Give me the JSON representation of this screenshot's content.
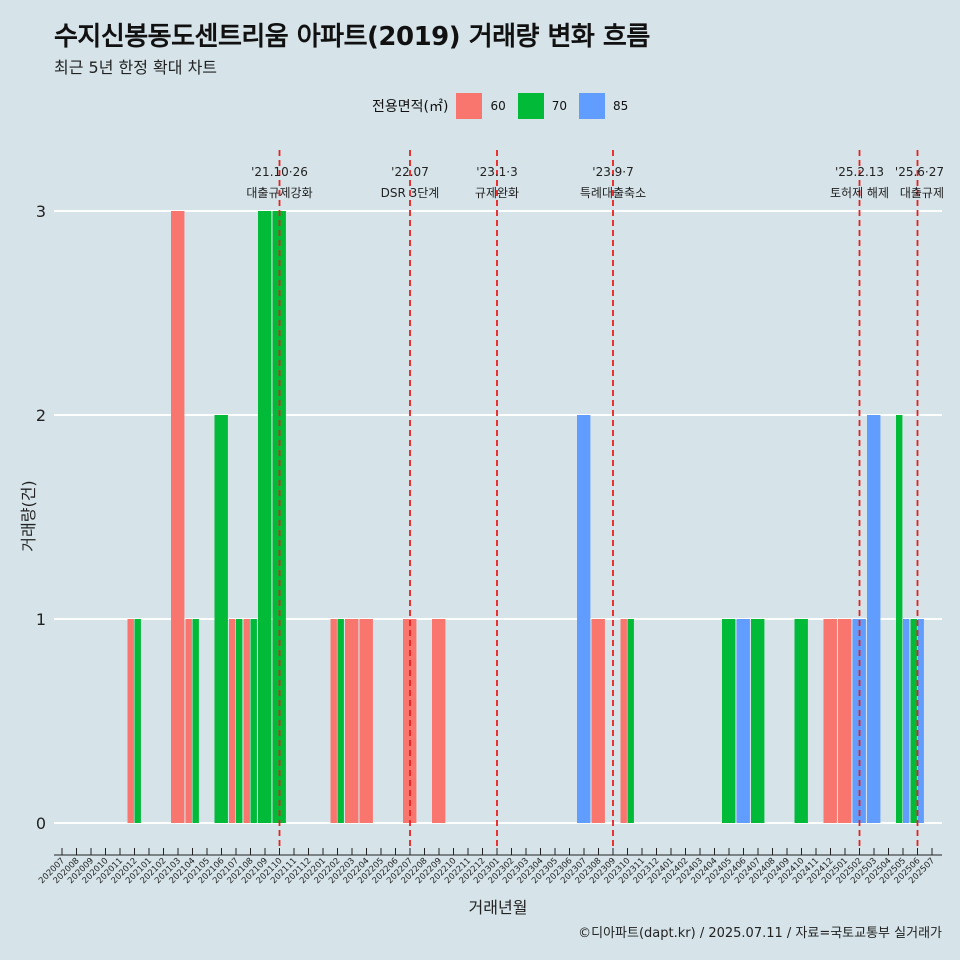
{
  "title": "수지신봉동도센트리움 아파트(2019) 거래량 변화 흐름",
  "subtitle": "최근 5년 한정 확대 차트",
  "caption": "©디아파트(dapt.kr) / 2025.07.11 / 자료=국토교통부 실거래가",
  "legend": {
    "title": "전용면적(㎡)",
    "items": [
      {
        "label": "60",
        "color": "#f8766d"
      },
      {
        "label": "70",
        "color": "#00ba38"
      },
      {
        "label": "85",
        "color": "#619cff"
      }
    ]
  },
  "chart_data": {
    "type": "bar",
    "xlabel": "거래년월",
    "ylabel": "거래량(건)",
    "ylim": [
      0,
      3
    ],
    "yticks": [
      0,
      1,
      2,
      3
    ],
    "grid": true,
    "categories": [
      "202007",
      "202008",
      "202009",
      "202010",
      "202011",
      "202012",
      "202101",
      "202102",
      "202103",
      "202104",
      "202105",
      "202106",
      "202107",
      "202108",
      "202109",
      "202110",
      "202111",
      "202112",
      "202201",
      "202202",
      "202203",
      "202204",
      "202205",
      "202206",
      "202207",
      "202208",
      "202209",
      "202210",
      "202211",
      "202212",
      "202301",
      "202302",
      "202303",
      "202304",
      "202305",
      "202306",
      "202307",
      "202308",
      "202309",
      "202310",
      "202311",
      "202312",
      "202401",
      "202402",
      "202403",
      "202404",
      "202405",
      "202406",
      "202407",
      "202408",
      "202409",
      "202410",
      "202411",
      "202412",
      "202501",
      "202502",
      "202503",
      "202504",
      "202505",
      "202506",
      "202507"
    ],
    "series": [
      {
        "name": "60",
        "color": "#f8766d",
        "values": [
          0,
          0,
          0,
          0,
          0,
          1,
          0,
          0,
          3,
          1,
          0,
          0,
          1,
          1,
          0,
          0,
          0,
          0,
          0,
          1,
          1,
          1,
          0,
          0,
          1,
          0,
          1,
          0,
          0,
          0,
          0,
          0,
          0,
          0,
          0,
          0,
          0,
          1,
          0,
          1,
          0,
          0,
          0,
          0,
          0,
          0,
          0,
          0,
          0,
          0,
          0,
          0,
          0,
          1,
          1,
          0,
          0,
          0,
          0,
          0,
          0
        ]
      },
      {
        "name": "70",
        "color": "#00ba38",
        "values": [
          0,
          0,
          0,
          0,
          0,
          1,
          0,
          0,
          0,
          1,
          0,
          2,
          1,
          1,
          3,
          3,
          0,
          0,
          0,
          1,
          0,
          0,
          0,
          0,
          0,
          0,
          0,
          0,
          0,
          0,
          0,
          0,
          0,
          0,
          0,
          0,
          0,
          0,
          0,
          1,
          0,
          0,
          0,
          0,
          0,
          0,
          1,
          0,
          1,
          0,
          0,
          1,
          0,
          0,
          0,
          0,
          0,
          0,
          2,
          1,
          0
        ]
      },
      {
        "name": "85",
        "color": "#619cff",
        "values": [
          0,
          0,
          0,
          0,
          0,
          0,
          0,
          0,
          0,
          0,
          0,
          0,
          0,
          0,
          0,
          0,
          0,
          0,
          0,
          0,
          0,
          0,
          0,
          0,
          0,
          0,
          0,
          0,
          0,
          0,
          0,
          0,
          0,
          0,
          0,
          0,
          2,
          0,
          0,
          0,
          0,
          0,
          0,
          0,
          0,
          0,
          0,
          1,
          0,
          0,
          0,
          0,
          0,
          0,
          0,
          1,
          2,
          0,
          1,
          1,
          0
        ]
      }
    ],
    "annotations": [
      {
        "date": "'21.10·26",
        "label": "대출규제강화",
        "x": "202110"
      },
      {
        "date": "'22.07",
        "label": "DSR 3단계",
        "x": "202207"
      },
      {
        "date": "'23.1·3",
        "label": "규제완화",
        "x": "202301"
      },
      {
        "date": "'23.9·7",
        "label": "특례대출축소",
        "x": "202309"
      },
      {
        "date": "'25.2.13",
        "label": "토허제 해제",
        "x": "202502"
      },
      {
        "date": "'25.6·27",
        "label": "대출규제",
        "x": "202506"
      }
    ]
  }
}
